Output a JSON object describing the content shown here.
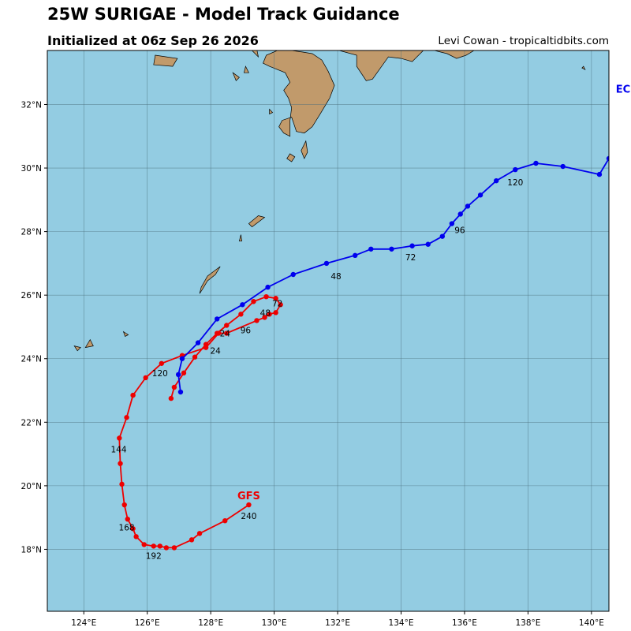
{
  "header": {
    "title": "25W SURIGAE - Model Track Guidance",
    "subtitle": "Initialized at 06z Sep 26 2026",
    "credit": "Levi Cowan - tropicaltidbits.com"
  },
  "colors": {
    "ocean": "#93cce2",
    "land": "#c19a6b",
    "grid": "#4a6f7c",
    "gfs": "#ee0000",
    "ecmwf": "#0000ee"
  },
  "chart_data": {
    "type": "scatter",
    "xlim": [
      122.85,
      140.55
    ],
    "ylim": [
      16.05,
      33.7
    ],
    "x_ticks": [
      {
        "value": 124,
        "label": "124°E"
      },
      {
        "value": 126,
        "label": "126°E"
      },
      {
        "value": 128,
        "label": "128°E"
      },
      {
        "value": 130,
        "label": "130°E"
      },
      {
        "value": 132,
        "label": "132°E"
      },
      {
        "value": 134,
        "label": "134°E"
      },
      {
        "value": 136,
        "label": "136°E"
      },
      {
        "value": 138,
        "label": "138°E"
      },
      {
        "value": 140,
        "label": "140°E"
      }
    ],
    "y_ticks": [
      {
        "value": 18,
        "label": "18°N"
      },
      {
        "value": 20,
        "label": "20°N"
      },
      {
        "value": 22,
        "label": "22°N"
      },
      {
        "value": 24,
        "label": "24°N"
      },
      {
        "value": 26,
        "label": "26°N"
      },
      {
        "value": 28,
        "label": "28°N"
      },
      {
        "value": 30,
        "label": "30°N"
      },
      {
        "value": 32,
        "label": "32°N"
      }
    ],
    "grid": true,
    "series": [
      {
        "name": "GFS",
        "color": "#ee0000",
        "lon": [
          126.75,
          126.85,
          127.15,
          127.5,
          127.85,
          128.2,
          128.5,
          128.95,
          129.35,
          129.75,
          130.05,
          130.2,
          130.05,
          129.85,
          129.7,
          129.45,
          128.5,
          128.25,
          127.85,
          127.1,
          126.45,
          125.95,
          125.55,
          125.35,
          125.12,
          125.15,
          125.2,
          125.28,
          125.38,
          125.55,
          125.65,
          125.9,
          126.2,
          126.4,
          126.6,
          126.85,
          127.4,
          127.65,
          128.45,
          129.2
        ],
        "lat": [
          22.75,
          23.1,
          23.55,
          24.05,
          24.45,
          24.8,
          25.05,
          25.4,
          25.8,
          25.95,
          25.9,
          25.7,
          25.45,
          25.4,
          25.3,
          25.2,
          24.8,
          24.8,
          24.35,
          24.1,
          23.85,
          23.4,
          22.85,
          22.15,
          21.5,
          20.7,
          20.05,
          19.4,
          18.95,
          18.65,
          18.4,
          18.15,
          18.1,
          18.1,
          18.05,
          18.05,
          18.3,
          18.5,
          18.9,
          19.4
        ],
        "labels": [
          {
            "text": "24",
            "lon": 128.15,
            "lat": 24.15
          },
          {
            "text": "48",
            "lon": 129.72,
            "lat": 25.35
          },
          {
            "text": "72",
            "lon": 130.1,
            "lat": 25.65
          },
          {
            "text": "96",
            "lon": 129.1,
            "lat": 24.8
          },
          {
            "text": "120",
            "lon": 126.4,
            "lat": 23.45
          },
          {
            "text": "144",
            "lon": 125.1,
            "lat": 21.05
          },
          {
            "text": "168",
            "lon": 125.35,
            "lat": 18.6
          },
          {
            "text": "192",
            "lon": 126.2,
            "lat": 17.7
          },
          {
            "text": "240",
            "lon": 129.2,
            "lat": 18.95
          }
        ],
        "name_label": {
          "text": "GFS",
          "lon": 129.2,
          "lat": 19.7
        }
      },
      {
        "name": "EC",
        "color": "#0000ee",
        "lon": [
          127.05,
          126.98,
          127.1,
          127.6,
          128.2,
          129,
          129.8,
          130.6,
          131.65,
          132.55,
          133.05,
          133.7,
          134.35,
          134.85,
          135.3,
          135.6,
          135.87,
          136.1,
          136.5,
          137,
          137.6,
          138.25,
          139.1,
          140.25,
          140.55
        ],
        "lat": [
          22.95,
          23.5,
          24.0,
          24.5,
          25.25,
          25.7,
          26.25,
          26.65,
          27.0,
          27.25,
          27.45,
          27.45,
          27.55,
          27.6,
          27.85,
          28.25,
          28.55,
          28.8,
          29.15,
          29.6,
          29.95,
          30.15,
          30.05,
          29.8,
          30.3
        ],
        "labels": [
          {
            "text": "24",
            "lon": 128.45,
            "lat": 24.7
          },
          {
            "text": "48",
            "lon": 131.95,
            "lat": 26.5
          },
          {
            "text": "72",
            "lon": 134.3,
            "lat": 27.1
          },
          {
            "text": "96",
            "lon": 135.85,
            "lat": 27.95
          },
          {
            "text": "120",
            "lon": 137.6,
            "lat": 29.45
          }
        ],
        "name_label": {
          "text": "EC",
          "lon": 140.55,
          "lat": 32.5
        }
      }
    ]
  }
}
